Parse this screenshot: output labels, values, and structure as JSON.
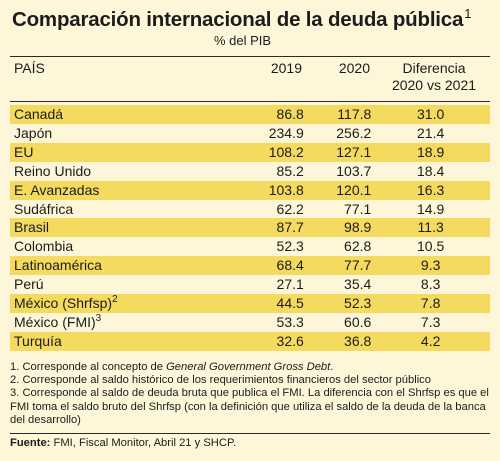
{
  "title": "Comparación internacional de la deuda pública",
  "title_note": "1",
  "subtitle": "% del PIB",
  "chart_data": {
    "type": "table",
    "columns": [
      "PAÍS",
      "2019",
      "2020",
      "Diferencia",
      "2020 vs 2021"
    ],
    "rows": [
      {
        "name": "Canadá",
        "sup": "",
        "v2019": "86.8",
        "v2020": "117.8",
        "diff": "31.0",
        "highlight": true
      },
      {
        "name": "Japón",
        "sup": "",
        "v2019": "234.9",
        "v2020": "256.2",
        "diff": "21.4",
        "highlight": false
      },
      {
        "name": "EU",
        "sup": "",
        "v2019": "108.2",
        "v2020": "127.1",
        "diff": "18.9",
        "highlight": true
      },
      {
        "name": "Reino Unido",
        "sup": "",
        "v2019": "85.2",
        "v2020": "103.7",
        "diff": "18.4",
        "highlight": false
      },
      {
        "name": "E. Avanzadas",
        "sup": "",
        "v2019": "103.8",
        "v2020": "120.1",
        "diff": "16.3",
        "highlight": true
      },
      {
        "name": "Sudáfrica",
        "sup": "",
        "v2019": "62.2",
        "v2020": "77.1",
        "diff": "14.9",
        "highlight": false
      },
      {
        "name": "Brasil",
        "sup": "",
        "v2019": "87.7",
        "v2020": "98.9",
        "diff": "11.3",
        "highlight": true
      },
      {
        "name": "Colombia",
        "sup": "",
        "v2019": "52.3",
        "v2020": "62.8",
        "diff": "10.5",
        "highlight": false
      },
      {
        "name": "Latinoamérica",
        "sup": "",
        "v2019": "68.4",
        "v2020": "77.7",
        "diff": "9.3",
        "highlight": true
      },
      {
        "name": "Perú",
        "sup": "",
        "v2019": "27.1",
        "v2020": "35.4",
        "diff": "8.3",
        "highlight": false
      },
      {
        "name": "México (Shrfsp)",
        "sup": "2",
        "v2019": "44.5",
        "v2020": "52.3",
        "diff": "7.8",
        "highlight": true
      },
      {
        "name": "México (FMI)",
        "sup": "3",
        "v2019": "53.3",
        "v2020": "60.6",
        "diff": "7.3",
        "highlight": false
      },
      {
        "name": "Turquía",
        "sup": "",
        "v2019": "32.6",
        "v2020": "36.8",
        "diff": "4.2",
        "highlight": true
      }
    ]
  },
  "notes": {
    "n1_prefix": "1. Corresponde al concepto de ",
    "n1_italic": "General Government Gross Debt",
    "n1_suffix": ".",
    "n2": "2. Corresponde al saldo histórico de los requerimientos financieros del sector público",
    "n3": "3. Corresponde al saldo de deuda bruta que publica el FMI. La diferencia con el Shrfsp es que el FMI toma el saldo bruto del Shrfsp (con la definición que utiliza el saldo de la deuda de la banca del desarrollo)"
  },
  "source": {
    "label": "Fuente:",
    "text": " FMI, Fiscal Monitor, Abril 21 y SHCP."
  },
  "colors": {
    "background": "#fdf6d8",
    "highlight": "#f4da5f",
    "text": "#1c1c1c"
  }
}
